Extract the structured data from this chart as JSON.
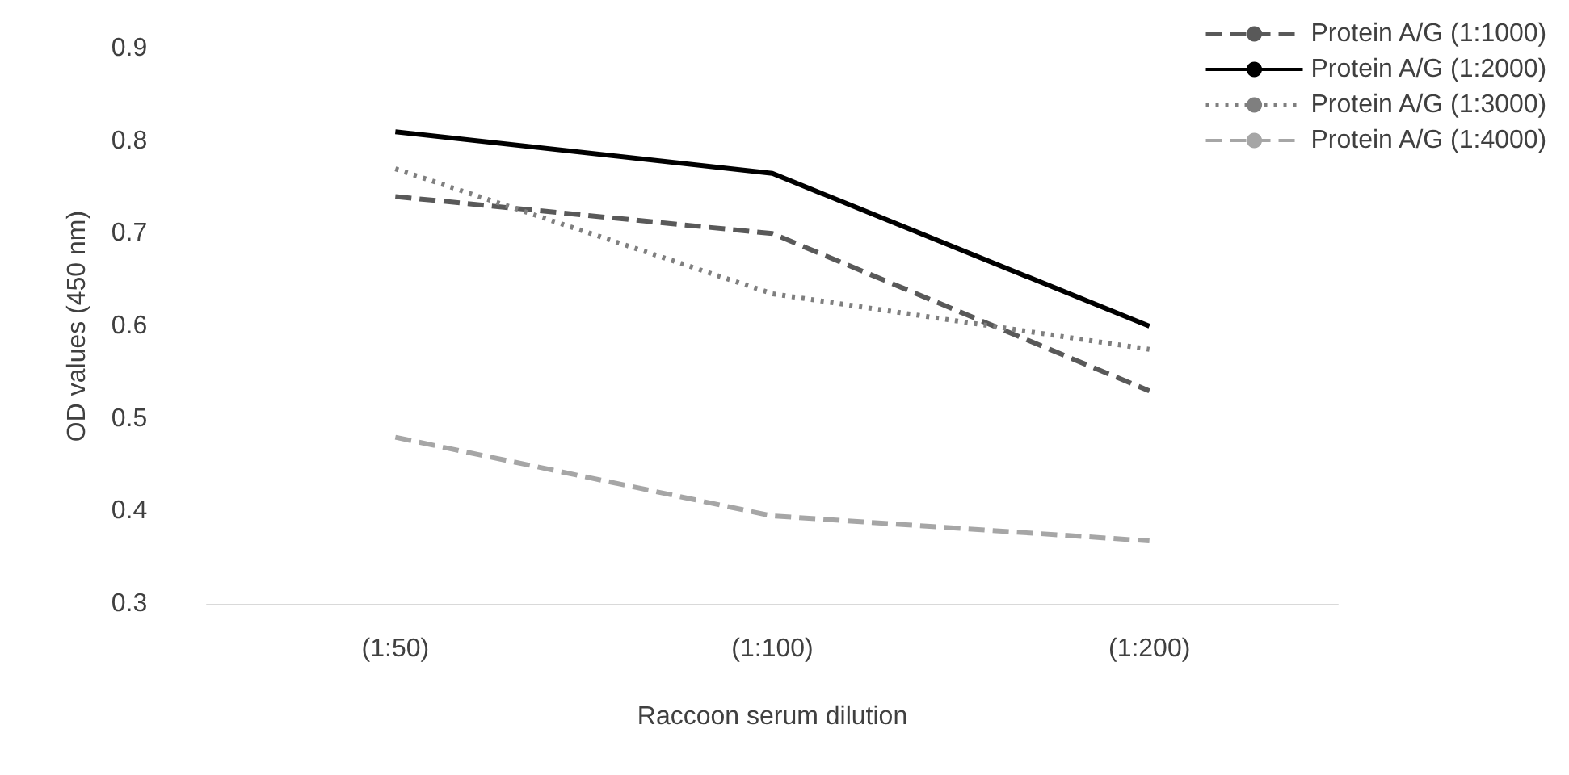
{
  "chart_data": {
    "type": "line",
    "xlabel": "Raccoon serum dilution",
    "ylabel": "OD values (450 nm)",
    "categories": [
      "(1:50)",
      "(1:100)",
      "(1:200)"
    ],
    "series": [
      {
        "name": "Protein A/G (1:1000)",
        "color": "#595959",
        "line_style": "dashed",
        "values": [
          0.74,
          0.7,
          0.53
        ]
      },
      {
        "name": "Protein A/G (1:2000)",
        "color": "#000000",
        "line_style": "solid",
        "values": [
          0.81,
          0.765,
          0.6
        ]
      },
      {
        "name": "Protein A/G (1:3000)",
        "color": "#7f7f7f",
        "line_style": "dotted",
        "values": [
          0.77,
          0.635,
          0.575
        ]
      },
      {
        "name": "Protein A/G (1:4000)",
        "color": "#a6a6a6",
        "line_style": "dashed",
        "values": [
          0.48,
          0.395,
          0.368
        ]
      }
    ],
    "ylim": [
      0.3,
      0.9
    ],
    "yticks": [
      0.3,
      0.4,
      0.5,
      0.6,
      0.7,
      0.8,
      0.9
    ],
    "grid": false,
    "legend": "top right",
    "marker": "none"
  }
}
